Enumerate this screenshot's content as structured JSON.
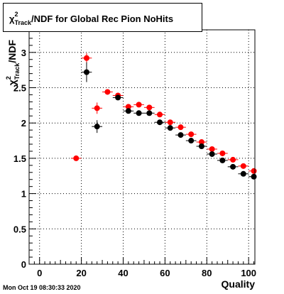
{
  "title": {
    "prefix": "χ",
    "sup": "2",
    "sub": "Track",
    "rest": "/NDF for Global Rec Pion NoHits"
  },
  "timestamp": "Mon Oct 19 08:30:33 2020",
  "chart_data": {
    "type": "scatter",
    "title": "χ²_Track/NDF for Global Rec Pion NoHits",
    "xlabel": "Quality",
    "ylabel": "χ²_Track/NDF",
    "xlim": [
      -5,
      103
    ],
    "ylim": [
      0,
      3.32
    ],
    "xticks": [
      0,
      20,
      40,
      60,
      80,
      100
    ],
    "yticks": [
      0,
      0.5,
      1,
      1.5,
      2,
      2.5,
      3
    ],
    "ytick_labels": [
      "0",
      "0.5",
      "1",
      "1.5",
      "2",
      "2.5",
      "3"
    ],
    "grid": true,
    "series": [
      {
        "color": "#ff0000",
        "x": [
          17.5,
          22.5,
          27.5,
          32.5,
          37.5,
          42.5,
          47.5,
          52.5,
          57.5,
          62.5,
          67.5,
          72.5,
          77.5,
          82.5,
          87.5,
          92.5,
          97.5,
          102.5
        ],
        "y": [
          1.5,
          2.92,
          2.21,
          2.44,
          2.39,
          2.23,
          2.26,
          2.22,
          2.12,
          2.01,
          1.94,
          1.84,
          1.73,
          1.63,
          1.57,
          1.48,
          1.39,
          1.32
        ],
        "yerr": [
          0.01,
          0.07,
          0.08,
          0.02,
          0.02,
          0.02,
          0.02,
          0.02,
          0.02,
          0.02,
          0.02,
          0.02,
          0.02,
          0.02,
          0.02,
          0.02,
          0.02,
          0.02
        ]
      },
      {
        "color": "#000000",
        "x": [
          22.5,
          27.5,
          37.5,
          42.5,
          47.5,
          52.5,
          57.5,
          62.5,
          67.5,
          72.5,
          77.5,
          82.5,
          87.5,
          92.5,
          97.5,
          102.5
        ],
        "y": [
          2.72,
          1.95,
          2.36,
          2.17,
          2.14,
          2.14,
          2.01,
          1.93,
          1.83,
          1.75,
          1.67,
          1.56,
          1.47,
          1.38,
          1.28,
          1.24
        ],
        "yerr": [
          0.14,
          0.09,
          0.03,
          0.02,
          0.02,
          0.02,
          0.02,
          0.02,
          0.02,
          0.02,
          0.02,
          0.02,
          0.02,
          0.02,
          0.02,
          0.02
        ]
      }
    ]
  }
}
